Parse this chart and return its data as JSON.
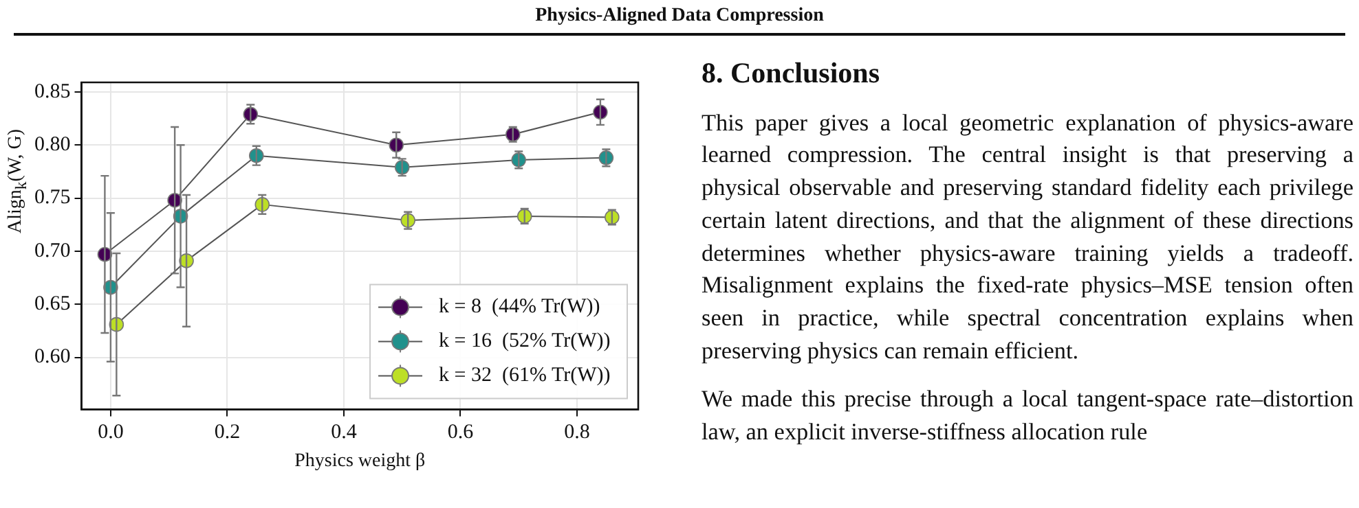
{
  "chart_data": {
    "type": "line",
    "title": "Physics-Aligned Data Compression",
    "xlabel": "Physics weight β",
    "ylabel": "Align$_{k}$(W, G)",
    "xlim": [
      -0.05,
      0.905
    ],
    "xticks": [
      {
        "value": 0,
        "label": "0.0"
      },
      0.2,
      0.4,
      0.6,
      0.8
    ],
    "ylim": [
      0.551,
      0.859
    ],
    "yticks": [
      {
        "value": 0.6,
        "label": "0.60"
      },
      {
        "value": 0.65,
        "label": "0.65"
      },
      {
        "value": 0.7,
        "label": "0.70"
      },
      {
        "value": 0.75,
        "label": "0.75"
      },
      {
        "value": 0.8,
        "label": "0.80"
      },
      {
        "value": 0.85,
        "label": "0.85"
      }
    ],
    "grid": true,
    "legend": "bottom right",
    "marker": "circle",
    "line_style": "solid",
    "series": [
      {
        "name": "k = 8  (44% Tr(W))",
        "color": "#440154",
        "x": [
          -0.01,
          0.11,
          0.24,
          0.49,
          0.69,
          0.84
        ],
        "values": [
          0.697,
          0.748,
          0.829,
          0.8,
          0.81,
          0.831
        ],
        "errors": [
          0.074,
          0.069,
          0.009,
          0.012,
          0.007,
          0.012
        ]
      },
      {
        "name": "k = 16  (52% Tr(W))",
        "color": "#21918c",
        "x": [
          0.0,
          0.12,
          0.25,
          0.5,
          0.7,
          0.85
        ],
        "values": [
          0.666,
          0.733,
          0.79,
          0.779,
          0.786,
          0.788
        ],
        "errors": [
          0.07,
          0.067,
          0.009,
          0.008,
          0.008,
          0.008
        ]
      },
      {
        "name": "k = 32  (61% Tr(W))",
        "color": "#bddf26",
        "x": [
          0.01,
          0.13,
          0.26,
          0.51,
          0.71,
          0.86
        ],
        "values": [
          0.631,
          0.691,
          0.744,
          0.729,
          0.733,
          0.732
        ],
        "errors": [
          0.067,
          0.062,
          0.009,
          0.008,
          0.007,
          0.007
        ]
      }
    ],
    "annotations": [
      "8. Conclusions",
      "This paper gives a local geometric explanation of physics-aware learned compression. The central insight is that preserving a physical observable and preserving standard fidelity each privilege certain latent directions, and that the alignment of these directions determines whether physics-aware training yields a tradeoff. Misalignment explains the fixed-rate physics–MSE tension often seen in practice, while spectral concentration explains when preserving physics can remain efficient.",
      "We made this precise through a local tangent-space rate–distortion law, an explicit inverse-stiffness allocation rule"
    ]
  }
}
